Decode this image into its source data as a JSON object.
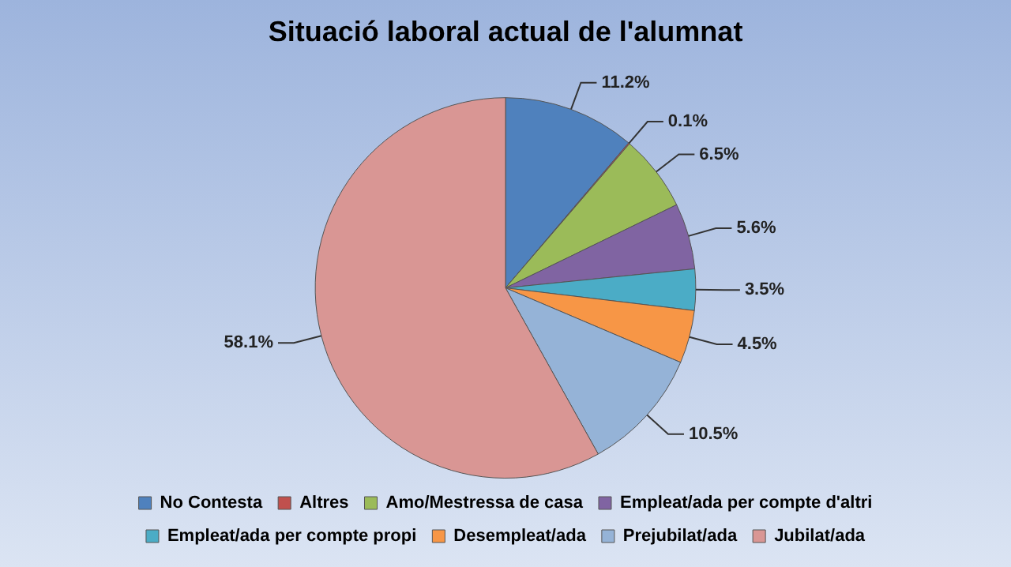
{
  "chart_data": {
    "type": "pie",
    "title": "Situació laboral actual de l'alumnat",
    "categories": [
      "No Contesta",
      "Altres",
      "Amo/Mestressa de casa",
      "Empleat/ada per compte d'altri",
      "Empleat/ada per compte propi",
      "Desempleat/ada",
      "Prejubilat/ada",
      "Jubilat/ada"
    ],
    "values": [
      11.2,
      0.1,
      6.5,
      5.6,
      3.5,
      4.5,
      10.5,
      58.1
    ],
    "colors": [
      "#4f81bd",
      "#c0504d",
      "#9bbb59",
      "#8064a2",
      "#4bacc6",
      "#f79646",
      "#95b3d7",
      "#d99694"
    ],
    "value_labels": [
      "11.2%",
      "0.1%",
      "6.5%",
      "5.6%",
      "3.5%",
      "4.5%",
      "10.5%",
      "58.1%"
    ],
    "legend": "bottom"
  }
}
